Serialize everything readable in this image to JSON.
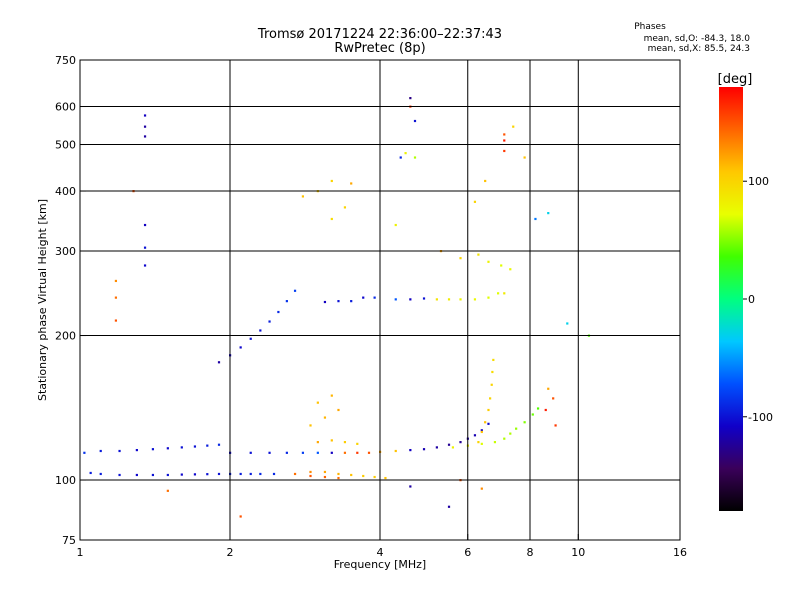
{
  "header": {
    "title_line1": "Tromsø 20171224 22:36:00–22:37:43",
    "title_line2": "RwPretec (8p)"
  },
  "stats": {
    "heading": "Phases",
    "o_line": "mean, sd,O: -84.3, 18.0",
    "x_line": "mean, sd,X: 85.5, 24.3"
  },
  "colorbar": {
    "unit_label": "[deg]",
    "ticks": [
      {
        "label": "100",
        "value": 100
      },
      {
        "label": "0",
        "value": 0
      },
      {
        "label": "-100",
        "value": -100
      }
    ],
    "range": [
      -180,
      180
    ],
    "colors": [
      "#000000",
      "#3a005a",
      "#1000c8",
      "#0050ff",
      "#00c8ff",
      "#00ff80",
      "#40ff00",
      "#e8ff00",
      "#ffc800",
      "#ff6400",
      "#ff0000"
    ]
  },
  "chart_data": {
    "type": "scatter",
    "xlabel": "Frequency [MHz]",
    "ylabel": "Stationary phase Virtual Height [km]",
    "x_scale": "log2",
    "y_scale": "log",
    "xlim": [
      1,
      16
    ],
    "ylim": [
      75,
      750
    ],
    "x_ticks": [
      {
        "label": "1",
        "value": 1
      },
      {
        "label": "2",
        "value": 2
      },
      {
        "label": "4",
        "value": 4
      },
      {
        "label": "6",
        "value": 6
      },
      {
        "label": "8",
        "value": 8
      },
      {
        "label": "10",
        "value": 10
      },
      {
        "label": "16",
        "value": 16
      }
    ],
    "x_grid": [
      2,
      4,
      6,
      8,
      10
    ],
    "y_ticks": [
      {
        "label": "750",
        "value": 750
      },
      {
        "label": "600",
        "value": 600
      },
      {
        "label": "500",
        "value": 500
      },
      {
        "label": "400",
        "value": 400
      },
      {
        "label": "300",
        "value": 300
      },
      {
        "label": "200",
        "value": 200
      },
      {
        "label": "100",
        "value": 100
      },
      {
        "label": "75",
        "value": 75
      }
    ],
    "y_grid": [
      600,
      500,
      400,
      300,
      200,
      100
    ],
    "series": [
      {
        "points": [
          [
            1.05,
            103.5,
            -95
          ],
          [
            1.1,
            103,
            -95
          ],
          [
            1.2,
            102.5,
            -100
          ],
          [
            1.3,
            102.5,
            -105
          ],
          [
            1.4,
            102.5,
            -100
          ],
          [
            1.5,
            102.5,
            -100
          ],
          [
            1.6,
            102.7,
            -105
          ],
          [
            1.7,
            102.8,
            -105
          ],
          [
            1.8,
            102.9,
            -100
          ],
          [
            1.9,
            103,
            -100
          ],
          [
            2.0,
            103,
            -95
          ],
          [
            2.1,
            103,
            -95
          ],
          [
            2.2,
            103,
            -95
          ],
          [
            2.3,
            103,
            -90
          ],
          [
            2.45,
            103,
            -90
          ]
        ]
      },
      {
        "points": [
          [
            1.02,
            114,
            -85
          ],
          [
            1.1,
            115,
            -95
          ],
          [
            1.2,
            115,
            -100
          ],
          [
            1.3,
            115.5,
            -105
          ],
          [
            1.4,
            116,
            -100
          ],
          [
            1.5,
            116.5,
            -105
          ],
          [
            1.6,
            117,
            -100
          ],
          [
            1.7,
            117.5,
            -100
          ],
          [
            1.8,
            118,
            -95
          ],
          [
            1.9,
            118.5,
            -90
          ]
        ]
      },
      {
        "points": [
          [
            2.0,
            114,
            -105
          ],
          [
            2.2,
            114,
            -100
          ],
          [
            2.4,
            114,
            -100
          ],
          [
            2.6,
            114,
            -90
          ],
          [
            2.8,
            114,
            -80
          ],
          [
            3.0,
            114,
            -70
          ],
          [
            3.2,
            114,
            -110
          ],
          [
            3.4,
            114,
            140
          ],
          [
            3.6,
            114,
            160
          ],
          [
            3.8,
            114,
            150
          ],
          [
            4.0,
            114.5,
            120
          ],
          [
            4.3,
            115,
            110
          ],
          [
            4.6,
            115.5,
            -110
          ],
          [
            4.9,
            116,
            -115
          ],
          [
            5.2,
            117,
            -120
          ],
          [
            5.5,
            118.5,
            -125
          ],
          [
            5.8,
            120,
            -125
          ],
          [
            6.0,
            122,
            -120
          ],
          [
            6.2,
            124,
            -115
          ],
          [
            6.4,
            127,
            -110
          ],
          [
            6.6,
            131,
            -105
          ]
        ]
      },
      {
        "points": [
          [
            5.6,
            117,
            80
          ],
          [
            6.0,
            118,
            80
          ],
          [
            6.4,
            119,
            70
          ],
          [
            6.8,
            120,
            65
          ],
          [
            7.1,
            122,
            60
          ],
          [
            7.3,
            125,
            60
          ],
          [
            7.5,
            128,
            55
          ],
          [
            7.8,
            132,
            50
          ],
          [
            8.1,
            137,
            45
          ],
          [
            8.3,
            141,
            40
          ]
        ]
      },
      {
        "points": [
          [
            6.3,
            120,
            100
          ],
          [
            6.4,
            126,
            110
          ],
          [
            6.5,
            132,
            110
          ],
          [
            6.6,
            140,
            105
          ],
          [
            6.65,
            148,
            100
          ],
          [
            6.7,
            158,
            100
          ],
          [
            6.72,
            168,
            95
          ],
          [
            6.75,
            178,
            95
          ]
        ]
      },
      {
        "points": [
          [
            2.9,
            104,
            130
          ],
          [
            3.1,
            104,
            120
          ],
          [
            3.3,
            103,
            115
          ],
          [
            3.5,
            102.5,
            110
          ],
          [
            3.7,
            102,
            105
          ],
          [
            3.9,
            101.5,
            105
          ],
          [
            4.1,
            101,
            110
          ]
        ]
      },
      {
        "points": [
          [
            2.7,
            103,
            140
          ],
          [
            2.9,
            102,
            150
          ],
          [
            3.1,
            101.5,
            145
          ],
          [
            3.3,
            101,
            140
          ]
        ]
      },
      {
        "points": [
          [
            3.0,
            120,
            120
          ],
          [
            3.2,
            121,
            110
          ],
          [
            3.4,
            120,
            105
          ],
          [
            3.6,
            119,
            100
          ],
          [
            2.9,
            130,
            110
          ],
          [
            3.1,
            135,
            115
          ],
          [
            3.3,
            140,
            120
          ],
          [
            3.0,
            145,
            110
          ],
          [
            3.2,
            150,
            115
          ]
        ]
      },
      {
        "points": [
          [
            3.1,
            235,
            -110
          ],
          [
            3.3,
            236,
            -100
          ],
          [
            3.5,
            236,
            -95
          ],
          [
            3.7,
            240,
            -105
          ],
          [
            3.9,
            240,
            -90
          ],
          [
            4.3,
            238,
            -70
          ],
          [
            4.6,
            238,
            -110
          ],
          [
            4.9,
            239,
            -100
          ],
          [
            5.2,
            238,
            90
          ],
          [
            5.5,
            238,
            85
          ],
          [
            5.8,
            238,
            80
          ],
          [
            6.2,
            238,
            75
          ],
          [
            6.6,
            240,
            70
          ],
          [
            6.9,
            245,
            70
          ],
          [
            7.1,
            245,
            85
          ]
        ]
      },
      {
        "points": [
          [
            5.3,
            300,
            120
          ],
          [
            5.8,
            290,
            100
          ],
          [
            6.3,
            295,
            90
          ],
          [
            6.6,
            285,
            80
          ],
          [
            7.0,
            280,
            70
          ],
          [
            7.3,
            275,
            75
          ],
          [
            3.2,
            420,
            100
          ],
          [
            3.5,
            415,
            120
          ],
          [
            2.8,
            390,
            110
          ],
          [
            3.0,
            400,
            105
          ],
          [
            3.4,
            370,
            100
          ],
          [
            3.2,
            350,
            95
          ]
        ]
      },
      {
        "points": [
          [
            1.35,
            520,
            -120
          ],
          [
            1.35,
            545,
            -120
          ],
          [
            1.35,
            575,
            -110
          ],
          [
            1.35,
            340,
            -110
          ],
          [
            1.35,
            305,
            -100
          ],
          [
            1.35,
            280,
            -105
          ],
          [
            1.28,
            400,
            150
          ],
          [
            1.18,
            260,
            130
          ],
          [
            1.18,
            240,
            140
          ],
          [
            1.18,
            215,
            150
          ],
          [
            1.5,
            95,
            140
          ],
          [
            2.1,
            84,
            150
          ]
        ]
      },
      {
        "points": [
          [
            4.6,
            625,
            -130
          ],
          [
            4.6,
            600,
            160
          ],
          [
            4.7,
            560,
            -100
          ],
          [
            4.5,
            480,
            80
          ],
          [
            4.4,
            470,
            -90
          ],
          [
            4.7,
            470,
            60
          ],
          [
            7.1,
            510,
            170
          ],
          [
            7.1,
            525,
            150
          ],
          [
            7.1,
            485,
            160
          ],
          [
            7.4,
            545,
            100
          ],
          [
            7.8,
            470,
            110
          ],
          [
            8.2,
            350,
            -60
          ],
          [
            8.7,
            360,
            -30
          ],
          [
            6.5,
            420,
            110
          ],
          [
            6.2,
            380,
            100
          ],
          [
            4.3,
            340,
            80
          ]
        ]
      },
      {
        "points": [
          [
            1.9,
            176,
            -120
          ],
          [
            2.0,
            182,
            -110
          ],
          [
            2.1,
            189,
            -105
          ],
          [
            2.2,
            197,
            -100
          ],
          [
            2.3,
            205,
            -100
          ],
          [
            2.4,
            214,
            -95
          ],
          [
            2.5,
            224,
            -90
          ],
          [
            2.6,
            236,
            -85
          ],
          [
            2.7,
            248,
            -80
          ]
        ]
      },
      {
        "points": [
          [
            9.5,
            212,
            -30
          ],
          [
            10.5,
            200,
            40
          ],
          [
            8.7,
            155,
            120
          ],
          [
            8.9,
            148,
            150
          ],
          [
            8.6,
            140,
            170
          ],
          [
            9.0,
            130,
            160
          ],
          [
            4.6,
            97,
            -120
          ],
          [
            5.5,
            88,
            -120
          ],
          [
            6.4,
            96,
            130
          ],
          [
            5.8,
            100,
            150
          ]
        ]
      }
    ]
  }
}
